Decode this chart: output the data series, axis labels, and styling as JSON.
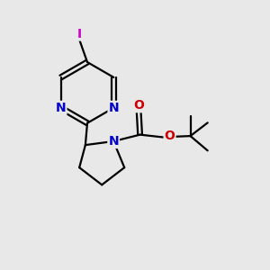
{
  "bg_color": "#e8e8e8",
  "bond_color": "#000000",
  "N_color": "#0000cc",
  "O_color": "#cc0000",
  "I_color": "#cc00cc",
  "line_width": 1.6,
  "figsize": [
    3.0,
    3.0
  ],
  "dpi": 100,
  "xlim": [
    0,
    10
  ],
  "ylim": [
    0,
    10
  ]
}
